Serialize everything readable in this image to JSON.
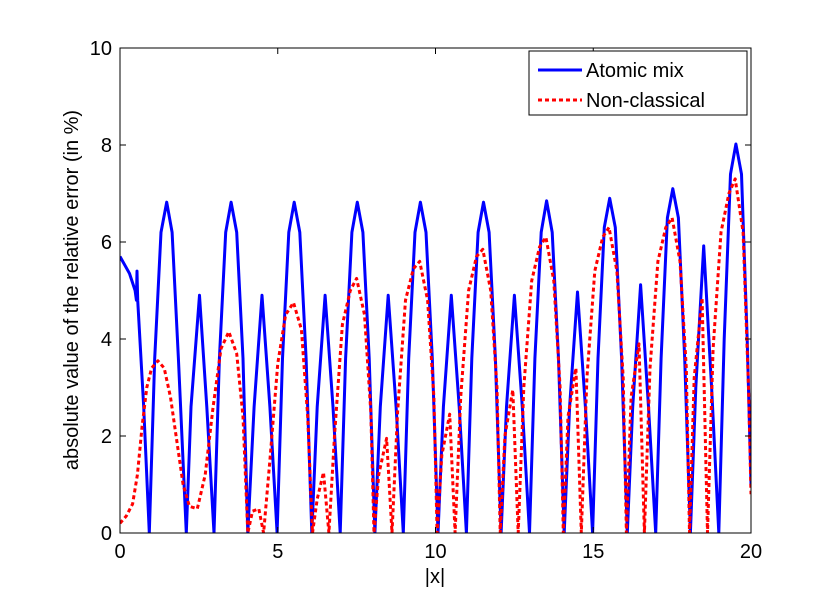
{
  "chart_data": {
    "type": "line",
    "xlabel": "|x|",
    "ylabel": "absolute value of the relative error (in %)",
    "xlim": [
      0,
      20
    ],
    "ylim": [
      0,
      10
    ],
    "xticks": [
      "0",
      "5",
      "10",
      "15",
      "20"
    ],
    "yticks": [
      "0",
      "2",
      "4",
      "6",
      "8",
      "10"
    ],
    "grid": false,
    "legend_position": "top-right",
    "series": [
      {
        "name": "Atomic mix",
        "color": "#0000ff",
        "style": "solid",
        "points": [
          [
            0,
            5.7
          ],
          [
            0.3,
            5.35
          ],
          [
            0.48,
            5.0
          ],
          [
            0.52,
            4.8
          ],
          [
            0.54,
            5.4
          ],
          [
            0.56,
            4.8
          ],
          [
            0.75,
            2.6
          ],
          [
            0.93,
            0.0
          ],
          [
            1.1,
            3.6
          ],
          [
            1.3,
            6.2
          ],
          [
            1.48,
            6.82
          ],
          [
            1.65,
            6.2
          ],
          [
            1.85,
            3.6
          ],
          [
            2.1,
            0.0
          ],
          [
            2.25,
            2.6
          ],
          [
            2.52,
            4.9
          ],
          [
            2.75,
            2.6
          ],
          [
            2.98,
            0.0
          ],
          [
            3.15,
            3.6
          ],
          [
            3.35,
            6.2
          ],
          [
            3.52,
            6.82
          ],
          [
            3.7,
            6.2
          ],
          [
            3.9,
            3.6
          ],
          [
            4.05,
            0.0
          ],
          [
            4.25,
            2.6
          ],
          [
            4.5,
            4.9
          ],
          [
            4.75,
            2.6
          ],
          [
            4.98,
            0.0
          ],
          [
            5.15,
            3.6
          ],
          [
            5.35,
            6.2
          ],
          [
            5.52,
            6.82
          ],
          [
            5.7,
            6.2
          ],
          [
            5.9,
            3.6
          ],
          [
            6.08,
            0.0
          ],
          [
            6.25,
            2.6
          ],
          [
            6.5,
            4.9
          ],
          [
            6.75,
            2.6
          ],
          [
            6.98,
            0.0
          ],
          [
            7.15,
            3.6
          ],
          [
            7.35,
            6.2
          ],
          [
            7.52,
            6.82
          ],
          [
            7.7,
            6.2
          ],
          [
            7.9,
            3.6
          ],
          [
            8.08,
            0.0
          ],
          [
            8.25,
            2.6
          ],
          [
            8.5,
            4.9
          ],
          [
            8.75,
            2.6
          ],
          [
            8.98,
            0.0
          ],
          [
            9.15,
            3.6
          ],
          [
            9.35,
            6.2
          ],
          [
            9.52,
            6.82
          ],
          [
            9.7,
            6.2
          ],
          [
            9.9,
            3.6
          ],
          [
            10.08,
            0.0
          ],
          [
            10.25,
            2.6
          ],
          [
            10.5,
            4.9
          ],
          [
            10.75,
            2.6
          ],
          [
            10.98,
            0.0
          ],
          [
            11.15,
            3.6
          ],
          [
            11.35,
            6.2
          ],
          [
            11.52,
            6.82
          ],
          [
            11.7,
            6.2
          ],
          [
            11.9,
            3.6
          ],
          [
            12.08,
            0.0
          ],
          [
            12.25,
            2.6
          ],
          [
            12.5,
            4.9
          ],
          [
            12.75,
            2.6
          ],
          [
            12.98,
            0.0
          ],
          [
            13.15,
            3.6
          ],
          [
            13.35,
            6.2
          ],
          [
            13.52,
            6.85
          ],
          [
            13.7,
            6.2
          ],
          [
            13.9,
            3.6
          ],
          [
            14.08,
            0.0
          ],
          [
            14.25,
            2.6
          ],
          [
            14.5,
            4.97
          ],
          [
            14.75,
            2.6
          ],
          [
            14.98,
            0.0
          ],
          [
            15.15,
            3.6
          ],
          [
            15.35,
            6.3
          ],
          [
            15.52,
            6.9
          ],
          [
            15.7,
            6.3
          ],
          [
            15.9,
            3.6
          ],
          [
            16.08,
            0.0
          ],
          [
            16.25,
            2.6
          ],
          [
            16.5,
            5.12
          ],
          [
            16.75,
            2.6
          ],
          [
            16.98,
            0.0
          ],
          [
            17.15,
            3.6
          ],
          [
            17.35,
            6.5
          ],
          [
            17.52,
            7.1
          ],
          [
            17.7,
            6.5
          ],
          [
            17.9,
            3.6
          ],
          [
            18.08,
            0.0
          ],
          [
            18.25,
            3.0
          ],
          [
            18.5,
            5.92
          ],
          [
            18.75,
            3.0
          ],
          [
            18.98,
            0.0
          ],
          [
            19.15,
            4.0
          ],
          [
            19.35,
            7.4
          ],
          [
            19.52,
            8.02
          ],
          [
            19.7,
            7.4
          ],
          [
            19.88,
            4.0
          ],
          [
            20.0,
            1.0
          ]
        ]
      },
      {
        "name": "Non-classical",
        "color": "#ff0000",
        "style": "dashed",
        "points": [
          [
            0,
            0.2
          ],
          [
            0.2,
            0.35
          ],
          [
            0.4,
            0.6
          ],
          [
            0.55,
            1.2
          ],
          [
            0.7,
            2.2
          ],
          [
            0.85,
            3.0
          ],
          [
            1.0,
            3.4
          ],
          [
            1.2,
            3.55
          ],
          [
            1.4,
            3.4
          ],
          [
            1.6,
            2.8
          ],
          [
            1.8,
            1.9
          ],
          [
            2.0,
            1.0
          ],
          [
            2.2,
            0.55
          ],
          [
            2.45,
            0.5
          ],
          [
            2.7,
            1.2
          ],
          [
            2.95,
            2.6
          ],
          [
            3.2,
            3.8
          ],
          [
            3.45,
            4.15
          ],
          [
            3.7,
            3.7
          ],
          [
            3.9,
            2.4
          ],
          [
            4.05,
            0.0
          ],
          [
            4.2,
            0.45
          ],
          [
            4.4,
            0.5
          ],
          [
            4.55,
            0.0
          ],
          [
            4.75,
            1.5
          ],
          [
            5.0,
            3.5
          ],
          [
            5.25,
            4.5
          ],
          [
            5.5,
            4.75
          ],
          [
            5.75,
            4.2
          ],
          [
            5.95,
            2.4
          ],
          [
            6.1,
            0.0
          ],
          [
            6.25,
            0.7
          ],
          [
            6.45,
            1.25
          ],
          [
            6.62,
            0.0
          ],
          [
            6.8,
            2.0
          ],
          [
            7.05,
            4.3
          ],
          [
            7.3,
            5.0
          ],
          [
            7.5,
            5.25
          ],
          [
            7.75,
            4.5
          ],
          [
            7.95,
            2.5
          ],
          [
            8.05,
            0.0
          ],
          [
            8.2,
            1.2
          ],
          [
            8.45,
            1.95
          ],
          [
            8.62,
            0.0
          ],
          [
            8.8,
            2.5
          ],
          [
            9.05,
            4.8
          ],
          [
            9.3,
            5.45
          ],
          [
            9.5,
            5.6
          ],
          [
            9.75,
            4.8
          ],
          [
            9.95,
            2.8
          ],
          [
            10.05,
            0.0
          ],
          [
            10.2,
            1.6
          ],
          [
            10.45,
            2.45
          ],
          [
            10.62,
            0.0
          ],
          [
            10.8,
            2.8
          ],
          [
            11.05,
            5.0
          ],
          [
            11.3,
            5.7
          ],
          [
            11.5,
            5.85
          ],
          [
            11.75,
            5.0
          ],
          [
            11.95,
            3.0
          ],
          [
            12.05,
            0.0
          ],
          [
            12.2,
            2.0
          ],
          [
            12.45,
            2.95
          ],
          [
            12.62,
            0.0
          ],
          [
            12.8,
            3.0
          ],
          [
            13.05,
            5.2
          ],
          [
            13.3,
            5.9
          ],
          [
            13.5,
            6.1
          ],
          [
            13.75,
            5.2
          ],
          [
            13.95,
            3.0
          ],
          [
            14.05,
            0.0
          ],
          [
            14.2,
            2.4
          ],
          [
            14.45,
            3.4
          ],
          [
            14.62,
            0.0
          ],
          [
            14.8,
            3.2
          ],
          [
            15.05,
            5.4
          ],
          [
            15.3,
            6.1
          ],
          [
            15.5,
            6.3
          ],
          [
            15.75,
            5.4
          ],
          [
            15.95,
            3.2
          ],
          [
            16.05,
            0.0
          ],
          [
            16.2,
            2.8
          ],
          [
            16.45,
            3.9
          ],
          [
            16.62,
            0.0
          ],
          [
            16.8,
            3.4
          ],
          [
            17.05,
            5.6
          ],
          [
            17.3,
            6.3
          ],
          [
            17.5,
            6.5
          ],
          [
            17.75,
            5.6
          ],
          [
            17.95,
            3.4
          ],
          [
            18.05,
            0.0
          ],
          [
            18.2,
            3.2
          ],
          [
            18.45,
            4.85
          ],
          [
            18.62,
            0.0
          ],
          [
            18.8,
            3.8
          ],
          [
            19.05,
            6.2
          ],
          [
            19.3,
            7.0
          ],
          [
            19.5,
            7.3
          ],
          [
            19.75,
            6.2
          ],
          [
            19.92,
            3.0
          ],
          [
            20.0,
            0.8
          ]
        ]
      }
    ]
  }
}
